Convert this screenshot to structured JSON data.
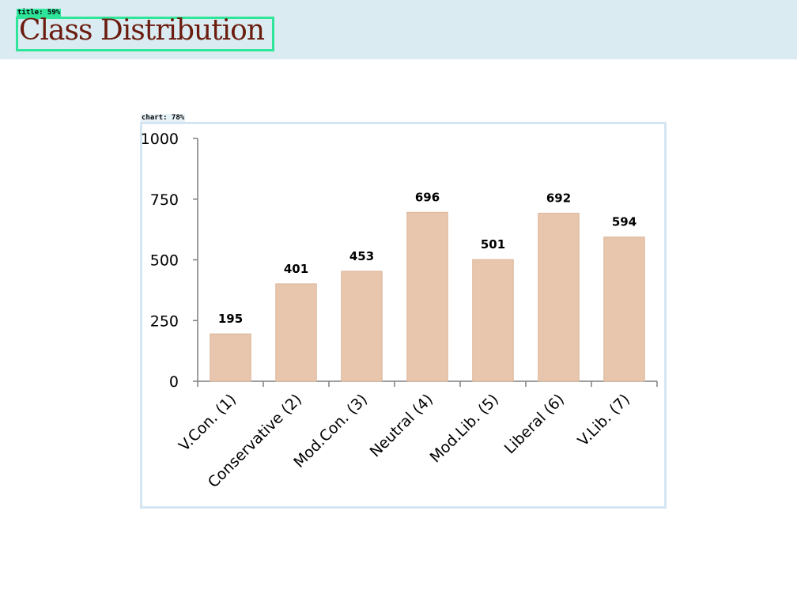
{
  "header": {
    "title": "Class Distribution",
    "title_tag": "title: 59%"
  },
  "chart_tag": "chart: 78%",
  "colors": {
    "bar": "#e8c6ad",
    "bar_stroke": "#d9b497",
    "axis": "#7f7f7f",
    "title": "#6b1c0e",
    "header_band": "#daebf2",
    "title_box": "#2ee59a",
    "chart_frame": "#d3e6f1"
  },
  "chart_data": {
    "type": "bar",
    "categories": [
      "V.Con. (1)",
      "Conservative (2)",
      "Mod.Con. (3)",
      "Neutral (4)",
      "Mod.Lib. (5)",
      "Liberal (6)",
      "V.Lib. (7)"
    ],
    "values": [
      195,
      401,
      453,
      696,
      501,
      692,
      594
    ],
    "data_labels": [
      "195",
      "401",
      "453",
      "696",
      "501",
      "692",
      "594"
    ],
    "yticks": [
      0,
      250,
      500,
      750,
      1000
    ],
    "ytick_labels": [
      "0",
      "250",
      "500",
      "750",
      "1000"
    ],
    "ylim": [
      0,
      1000
    ],
    "title": "",
    "xlabel": "",
    "ylabel": "",
    "grid": false,
    "legend": "none"
  }
}
